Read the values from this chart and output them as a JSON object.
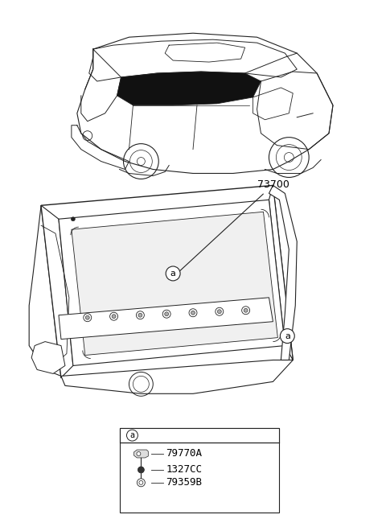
{
  "background_color": "#ffffff",
  "part_label_73700": "73700",
  "callout_a": "a",
  "parts": [
    "79770A",
    "1327CC",
    "79359B"
  ],
  "text_color": "#000000",
  "line_color": "#222222",
  "lw_main": 0.9,
  "lw_thin": 0.6,
  "lw_thick": 1.1
}
